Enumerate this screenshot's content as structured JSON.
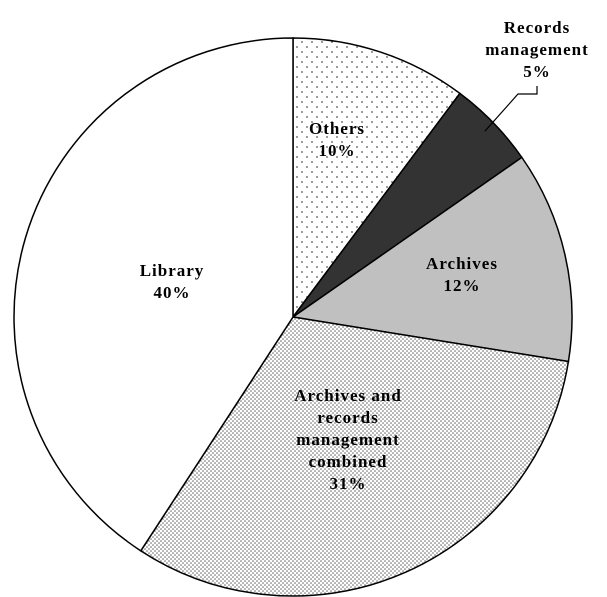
{
  "chart_data": {
    "type": "pie",
    "categories": [
      "Others",
      "Records management",
      "Archives",
      "Archives and records management combined",
      "Library"
    ],
    "values": [
      10,
      5,
      12,
      31,
      40
    ],
    "value_labels": [
      "10%",
      "5%",
      "12%",
      "31%",
      "40%"
    ],
    "colors": [
      "#ffffff",
      "#333333",
      "#c0c0c0",
      "#ffffff",
      "#ffffff"
    ],
    "patterns": [
      "dots",
      null,
      null,
      "dense-dots",
      null
    ]
  }
}
